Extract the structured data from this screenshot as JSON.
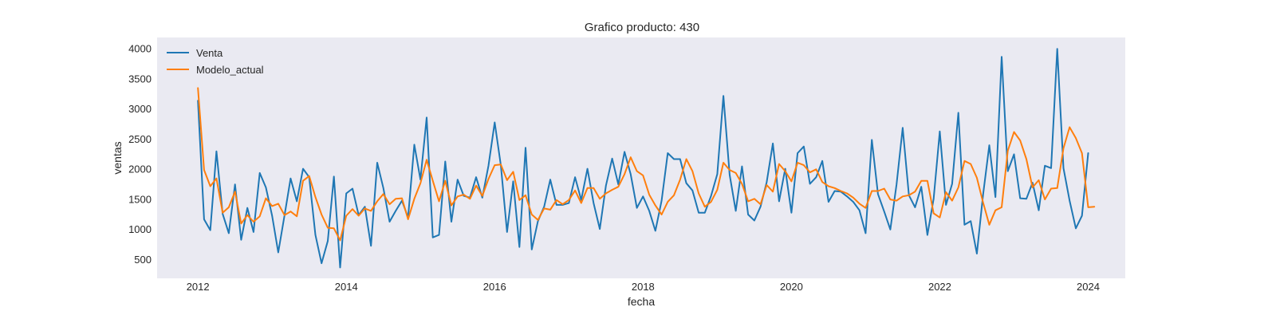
{
  "chart_data": {
    "type": "line",
    "title": "Grafico producto: 430",
    "xlabel": "fecha",
    "ylabel": "ventas",
    "x_ticks": [
      "2012",
      "2014",
      "2016",
      "2018",
      "2020",
      "2022",
      "2024"
    ],
    "x_tick_values": [
      2012,
      2014,
      2016,
      2018,
      2020,
      2022,
      2024
    ],
    "y_ticks": [
      "500",
      "1000",
      "1500",
      "2000",
      "2500",
      "3000",
      "3500",
      "4000"
    ],
    "y_tick_values": [
      500,
      1000,
      1500,
      2000,
      2500,
      3000,
      3500,
      4000
    ],
    "xlim": [
      2011.45,
      2024.5
    ],
    "ylim": [
      180,
      4180
    ],
    "grid": false,
    "legend_position": "top-left",
    "background_color": "#eaeaf2",
    "x_start_date": "2012-01",
    "x_frequency": "monthly",
    "series": [
      {
        "name": "Venta",
        "color": "#1f77b4",
        "values": [
          3130,
          1160,
          980,
          2290,
          1250,
          930,
          1740,
          820,
          1350,
          950,
          1930,
          1690,
          1220,
          610,
          1220,
          1840,
          1460,
          2000,
          1860,
          900,
          430,
          800,
          1870,
          360,
          1590,
          1670,
          1230,
          1370,
          720,
          2100,
          1680,
          1120,
          1300,
          1470,
          1190,
          2400,
          1820,
          2850,
          860,
          900,
          2120,
          1120,
          1820,
          1550,
          1520,
          1860,
          1520,
          2050,
          2770,
          2060,
          950,
          1790,
          700,
          2350,
          660,
          1130,
          1370,
          1820,
          1400,
          1400,
          1430,
          1860,
          1480,
          2000,
          1430,
          1000,
          1720,
          2170,
          1740,
          2280,
          1910,
          1350,
          1540,
          1300,
          970,
          1470,
          2260,
          2160,
          2160,
          1760,
          1640,
          1270,
          1270,
          1550,
          1910,
          3210,
          1900,
          1300,
          2040,
          1240,
          1140,
          1370,
          1780,
          2420,
          1460,
          2000,
          1270,
          2260,
          2370,
          1750,
          1860,
          2130,
          1450,
          1630,
          1620,
          1540,
          1450,
          1310,
          930,
          2480,
          1580,
          1290,
          990,
          1740,
          2680,
          1560,
          1360,
          1700,
          900,
          1500,
          2620,
          1400,
          1750,
          2930,
          1070,
          1130,
          590,
          1570,
          2390,
          1530,
          3860,
          1960,
          2240,
          1510,
          1500,
          1770,
          1310,
          2050,
          2010,
          3990,
          2010,
          1470,
          1010,
          1220,
          2260
        ]
      },
      {
        "name": "Modelo_actual",
        "color": "#ff7f0e",
        "values": [
          3340,
          1980,
          1710,
          1840,
          1270,
          1360,
          1620,
          1090,
          1230,
          1120,
          1210,
          1510,
          1380,
          1420,
          1230,
          1290,
          1210,
          1800,
          1880,
          1530,
          1240,
          1020,
          1010,
          810,
          1220,
          1330,
          1220,
          1340,
          1300,
          1460,
          1580,
          1410,
          1500,
          1510,
          1160,
          1500,
          1760,
          2150,
          1800,
          1460,
          1800,
          1390,
          1540,
          1570,
          1500,
          1720,
          1550,
          1830,
          2060,
          2070,
          1810,
          1950,
          1480,
          1560,
          1240,
          1150,
          1340,
          1320,
          1480,
          1410,
          1480,
          1640,
          1430,
          1680,
          1680,
          1500,
          1590,
          1650,
          1700,
          1910,
          2190,
          1960,
          1890,
          1570,
          1390,
          1240,
          1450,
          1560,
          1820,
          2160,
          1960,
          1590,
          1370,
          1450,
          1650,
          2100,
          1980,
          1930,
          1750,
          1460,
          1500,
          1410,
          1730,
          1620,
          2080,
          1960,
          1790,
          2100,
          2060,
          1940,
          1990,
          1780,
          1710,
          1680,
          1630,
          1590,
          1520,
          1420,
          1350,
          1630,
          1630,
          1670,
          1490,
          1470,
          1540,
          1560,
          1620,
          1800,
          1800,
          1260,
          1190,
          1610,
          1470,
          1690,
          2130,
          2080,
          1850,
          1440,
          1070,
          1310,
          1360,
          2300,
          2610,
          2470,
          2160,
          1690,
          1810,
          1490,
          1670,
          1680,
          2340,
          2690,
          2510,
          2260,
          1360,
          1370
        ]
      }
    ]
  }
}
